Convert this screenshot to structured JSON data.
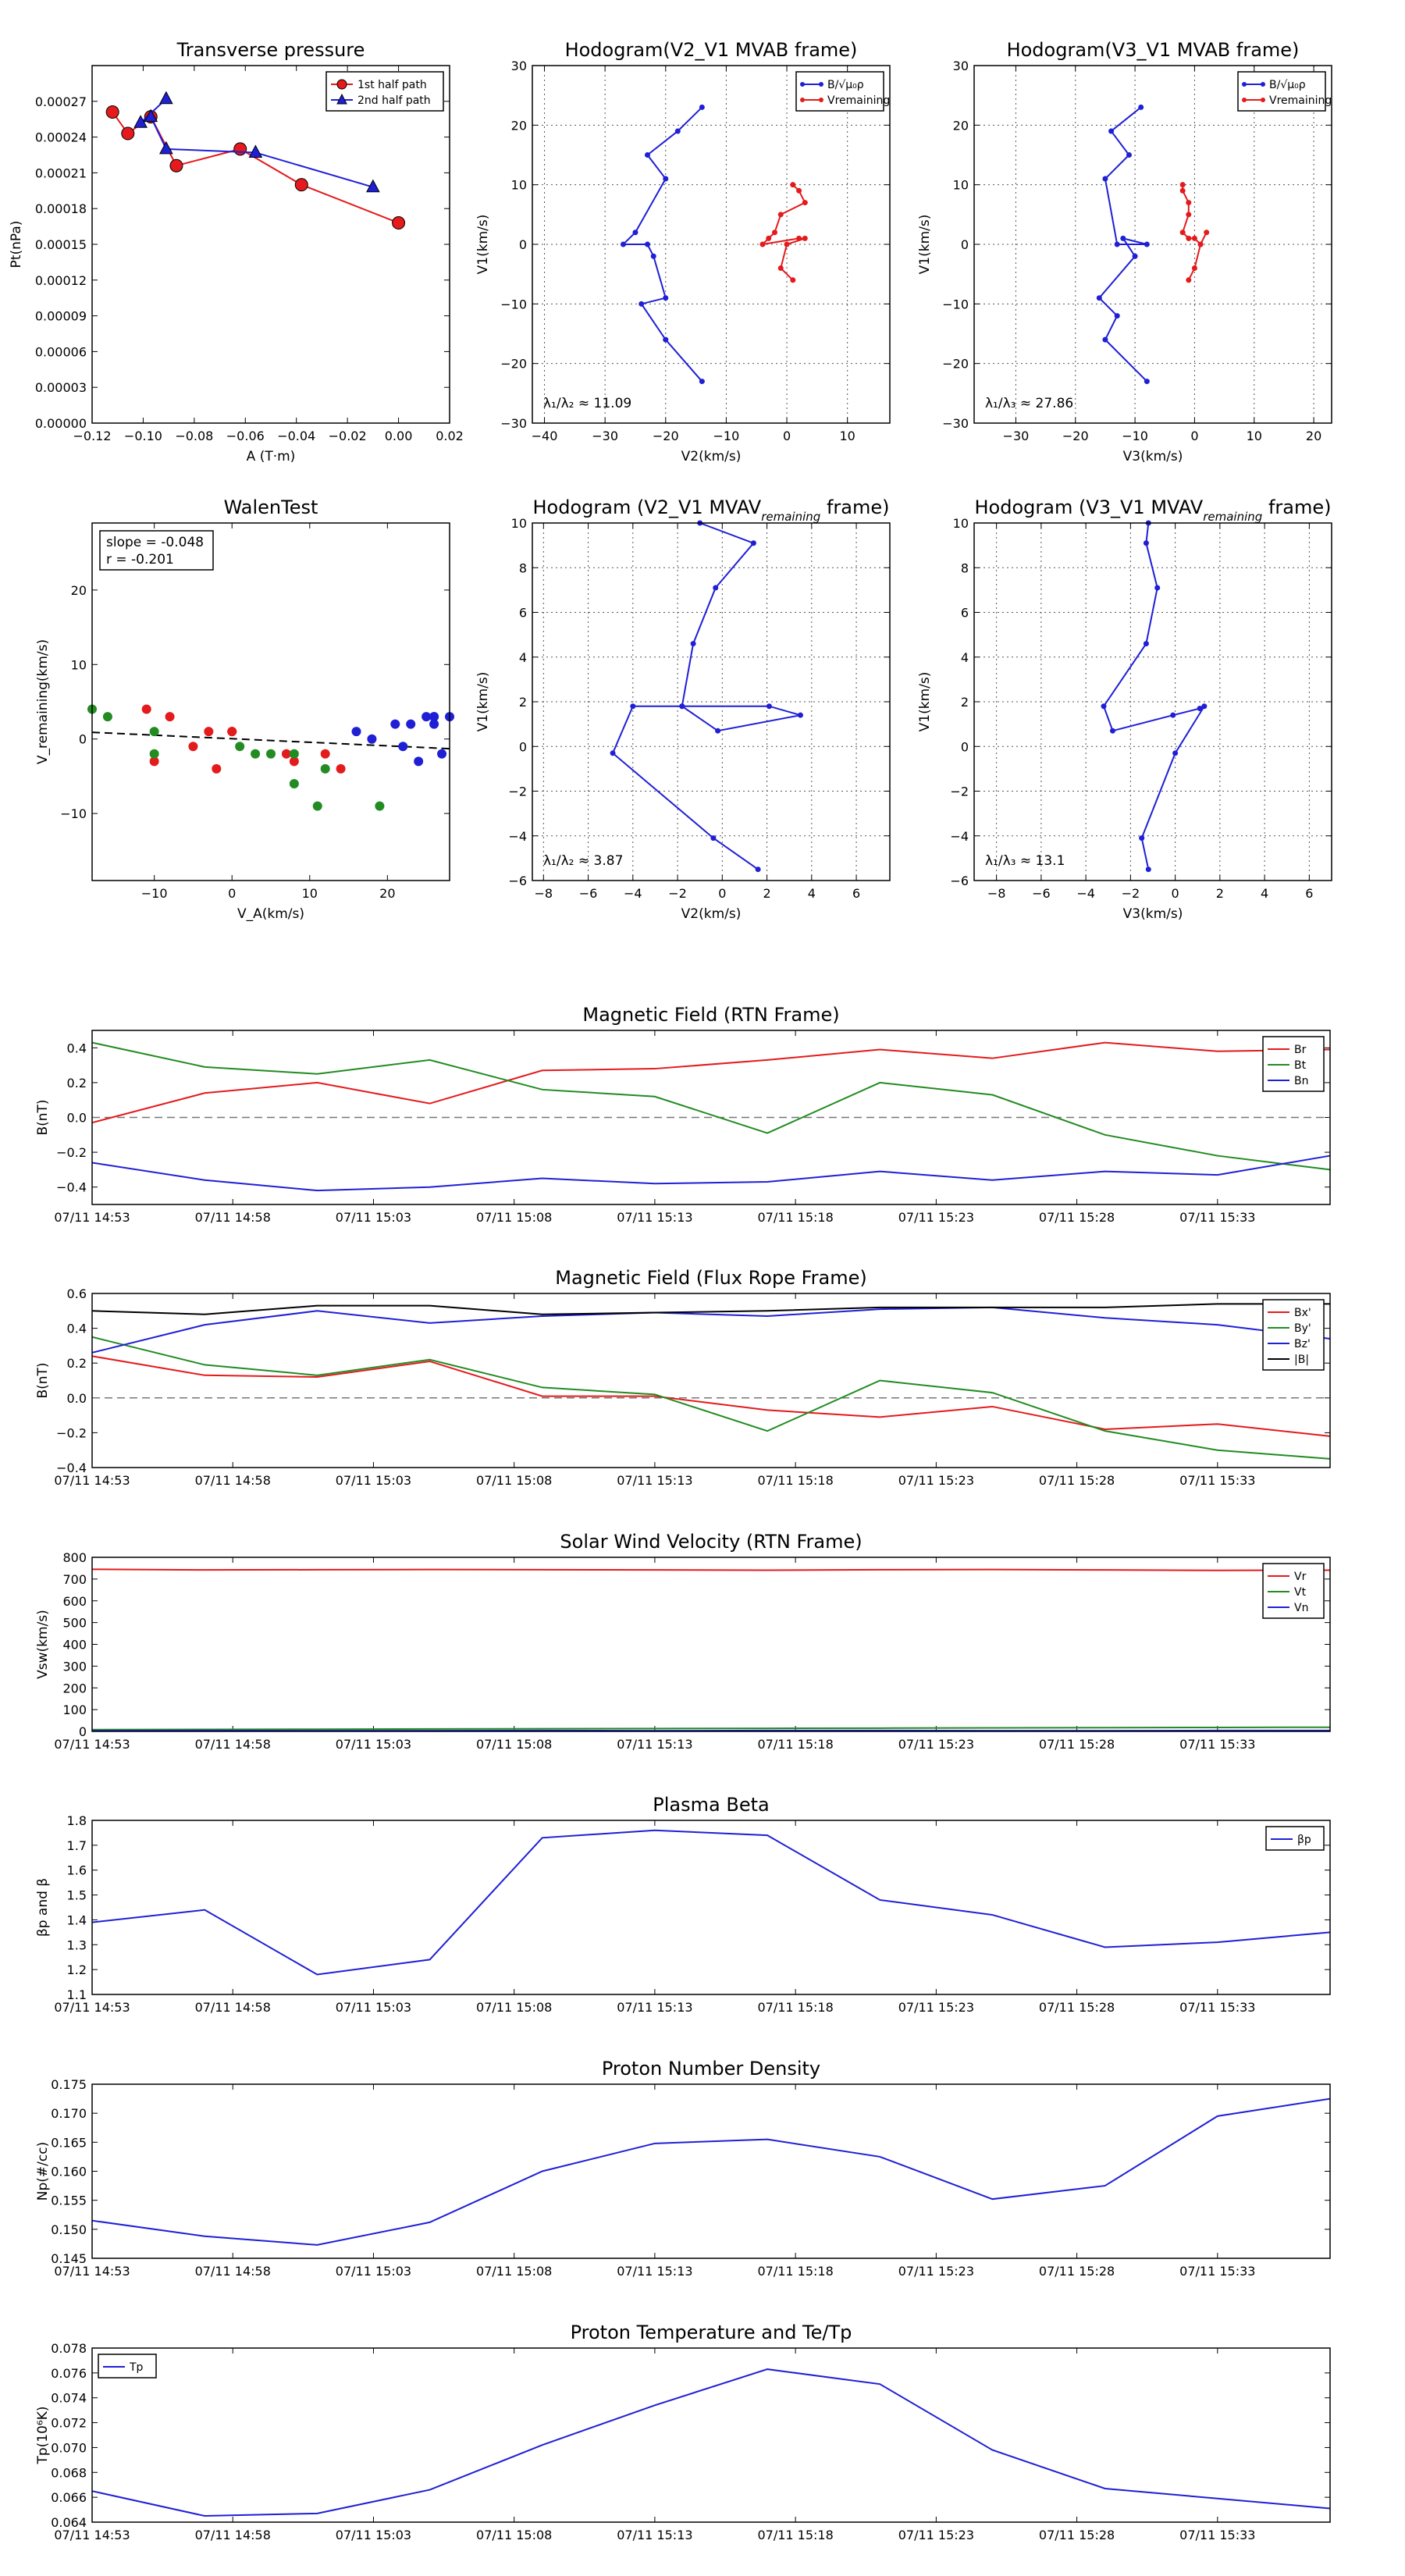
{
  "colors": {
    "red": "#e41a1c",
    "green": "#228b22",
    "blue": "#1f1fd6",
    "black": "#000000"
  },
  "chart_data": [
    {
      "id": "pt",
      "type": "line",
      "title": "Transverse pressure",
      "xlabel": "A (T·m)",
      "ylabel": "Pt(nPa)",
      "xlim": [
        -0.12,
        0.02
      ],
      "ylim": [
        0,
        0.0003
      ],
      "xticks": [
        "−0.12",
        "−0.10",
        "−0.08",
        "−0.06",
        "−0.04",
        "−0.02",
        "0.00",
        "0.02"
      ],
      "yticks": [
        "0.00000",
        "0.00003",
        "0.00006",
        "0.00009",
        "0.00012",
        "0.00015",
        "0.00018",
        "0.00021",
        "0.00024",
        "0.00027"
      ],
      "grid": false,
      "legend": "top-right",
      "series": [
        {
          "name": "1st half path",
          "color": "red",
          "marker": "circle",
          "x": [
            -0.112,
            -0.106,
            -0.097,
            -0.087,
            -0.062,
            -0.038,
            0.0
          ],
          "y": [
            0.000261,
            0.000243,
            0.000257,
            0.000216,
            0.00023,
            0.0002,
            0.000168
          ]
        },
        {
          "name": "2nd half path",
          "color": "blue",
          "marker": "triangle",
          "x": [
            -0.091,
            -0.101,
            -0.097,
            -0.091,
            -0.056,
            -0.01
          ],
          "y": [
            0.000272,
            0.000252,
            0.000257,
            0.00023,
            0.000227,
            0.000198
          ]
        }
      ]
    },
    {
      "id": "h1",
      "type": "line",
      "title": "Hodogram(V2_V1 MVAB frame)",
      "xlabel": "V2(km/s)",
      "ylabel": "V1(km/s)",
      "xlim": [
        -42,
        17
      ],
      "ylim": [
        -30,
        30
      ],
      "xticks": [
        "−40",
        "−30",
        "−20",
        "−10",
        "0",
        "10"
      ],
      "yticks": [
        "−30",
        "−20",
        "−10",
        "0",
        "10",
        "20",
        "30"
      ],
      "grid": true,
      "legend": "top-right",
      "annotation": "λ₁/λ₂ ≈ 11.09",
      "series": [
        {
          "name": "B/√μ₀ρ",
          "color": "blue",
          "marker": "dot",
          "x": [
            -14,
            -18,
            -23,
            -20,
            -25,
            -27,
            -23,
            -22,
            -20,
            -24,
            -20,
            -14
          ],
          "y": [
            23,
            19,
            15,
            11,
            2,
            0,
            0,
            -2,
            -9,
            -10,
            -16,
            -23
          ]
        },
        {
          "name": "Vremaining",
          "color": "red",
          "marker": "dot",
          "x": [
            1,
            2,
            3,
            -1,
            -2,
            -3,
            -4,
            2,
            3,
            0,
            -1,
            1
          ],
          "y": [
            10,
            9,
            7,
            5,
            2,
            1,
            0,
            1,
            1,
            0,
            -4,
            -6
          ]
        }
      ]
    },
    {
      "id": "h2",
      "type": "line",
      "title": "Hodogram(V3_V1 MVAB frame)",
      "xlabel": "V3(km/s)",
      "ylabel": "V1(km/s)",
      "xlim": [
        -37,
        23
      ],
      "ylim": [
        -30,
        30
      ],
      "xticks": [
        "−30",
        "−20",
        "−10",
        "0",
        "10",
        "20"
      ],
      "yticks": [
        "−30",
        "−20",
        "−10",
        "0",
        "10",
        "20",
        "30"
      ],
      "grid": true,
      "legend": "top-right",
      "annotation": "λ₁/λ₃ ≈ 27.86",
      "series": [
        {
          "name": "B/√μ₀ρ",
          "color": "blue",
          "marker": "dot",
          "x": [
            -9,
            -14,
            -11,
            -15,
            -13,
            -8,
            -12,
            -10,
            -16,
            -13,
            -15,
            -8
          ],
          "y": [
            23,
            19,
            15,
            11,
            0,
            0,
            1,
            -2,
            -9,
            -12,
            -16,
            -23
          ]
        },
        {
          "name": "Vremaining",
          "color": "red",
          "marker": "dot",
          "x": [
            -2,
            -2,
            -1,
            -1,
            -2,
            -1,
            0,
            1,
            2,
            1,
            0,
            -1
          ],
          "y": [
            10,
            9,
            7,
            5,
            2,
            1,
            1,
            0,
            2,
            0,
            -4,
            -6
          ]
        }
      ]
    },
    {
      "id": "walen",
      "type": "scatter",
      "title": "WalenTest",
      "xlabel": "V_A(km/s)",
      "ylabel": "V_remaining(km/s)",
      "xlim": [
        -18,
        28
      ],
      "ylim": [
        -19,
        29
      ],
      "xticks": [
        "−10",
        "0",
        "10",
        "20"
      ],
      "yticks": [
        "−10",
        "0",
        "10",
        "20"
      ],
      "grid": false,
      "textbox": [
        "slope = -0.048",
        "r = -0.201"
      ],
      "fit": {
        "x": [
          -18,
          28
        ],
        "y": [
          0.9,
          -1.3
        ]
      },
      "series": [
        {
          "color": "red",
          "x": [
            -11,
            -10,
            -8,
            -5,
            -3,
            -2,
            0,
            0,
            8,
            7,
            12,
            14
          ],
          "y": [
            4,
            -3,
            3,
            -1,
            1,
            -4,
            1,
            1,
            -3,
            -2,
            -2,
            -4
          ]
        },
        {
          "color": "green",
          "x": [
            -18,
            -16,
            -10,
            -10,
            1,
            3,
            5,
            8,
            8,
            11,
            12,
            19
          ],
          "y": [
            4,
            3,
            1,
            -2,
            -1,
            -2,
            -2,
            -2,
            -6,
            -9,
            -4,
            -9
          ]
        },
        {
          "color": "blue",
          "x": [
            16,
            18,
            21,
            22,
            23,
            24,
            25,
            26,
            26,
            26,
            27,
            28
          ],
          "y": [
            1,
            0,
            2,
            -1,
            2,
            -3,
            3,
            2,
            3,
            3,
            -2,
            3
          ]
        }
      ]
    },
    {
      "id": "h3",
      "type": "line",
      "title": "Hodogram (V2_V1 MVAV",
      "title_sub": "remaining",
      "title_end": " frame)",
      "xlabel": "V2(km/s)",
      "ylabel": "V1(km/s)",
      "xlim": [
        -8.5,
        7.5
      ],
      "ylim": [
        -6,
        10
      ],
      "xticks": [
        "−8",
        "−6",
        "−4",
        "−2",
        "0",
        "2",
        "4",
        "6"
      ],
      "yticks": [
        "−6",
        "−4",
        "−2",
        "0",
        "2",
        "4",
        "6",
        "8",
        "10"
      ],
      "grid": true,
      "annotation": "λ₁/λ₂ ≈ 3.87",
      "series": [
        {
          "color": "blue",
          "marker": "dot",
          "x": [
            -1.0,
            1.4,
            -0.3,
            -1.3,
            -1.8,
            2.1,
            3.5,
            -0.2,
            -1.8,
            -4.0,
            -4.9,
            -0.4,
            1.6
          ],
          "y": [
            10.0,
            9.1,
            7.1,
            4.6,
            1.8,
            1.8,
            1.4,
            0.7,
            1.8,
            1.8,
            -0.3,
            -4.1,
            -5.5
          ]
        }
      ]
    },
    {
      "id": "h4",
      "type": "line",
      "title": "Hodogram (V3_V1 MVAV",
      "title_sub": "remaining",
      "title_end": " frame)",
      "xlabel": "V3(km/s)",
      "ylabel": "V1(km/s)",
      "xlim": [
        -9,
        7
      ],
      "ylim": [
        -6,
        10
      ],
      "xticks": [
        "−8",
        "−6",
        "−4",
        "−2",
        "0",
        "2",
        "4",
        "6"
      ],
      "yticks": [
        "−6",
        "−4",
        "−2",
        "0",
        "2",
        "4",
        "6",
        "8",
        "10"
      ],
      "grid": true,
      "annotation": "λ₁/λ₃ ≈ 13.1",
      "series": [
        {
          "color": "blue",
          "marker": "dot",
          "x": [
            -1.2,
            -1.3,
            -0.8,
            -1.3,
            -3.2,
            -2.8,
            -0.1,
            1.1,
            1.3,
            0,
            -1.5,
            -1.2
          ],
          "y": [
            10.0,
            9.1,
            7.1,
            4.6,
            1.8,
            0.7,
            1.4,
            1.7,
            1.8,
            -0.3,
            -4.1,
            -5.5
          ]
        }
      ]
    },
    {
      "id": "bf",
      "type": "line",
      "title": "Magnetic Field (RTN Frame)",
      "ylabel": "B(nT)",
      "xlim": [
        0,
        44
      ],
      "ylim": [
        -0.5,
        0.5
      ],
      "yticks": [
        "−0.4",
        "−0.2",
        "0.0",
        "0.2",
        "0.4"
      ],
      "xtick_pos": [
        0,
        5,
        10,
        15,
        20,
        25,
        30,
        35,
        40
      ],
      "xticks": [
        "07/11 14:53",
        "07/11 14:58",
        "07/11 15:03",
        "07/11 15:08",
        "07/11 15:13",
        "07/11 15:18",
        "07/11 15:23",
        "07/11 15:28",
        "07/11 15:33"
      ],
      "zero_line": true,
      "legend": "top-right",
      "x": [
        0,
        4,
        8,
        12,
        16,
        20,
        24,
        28,
        32,
        36,
        40,
        44
      ],
      "series": [
        {
          "name": "Br",
          "color": "red",
          "y": [
            -0.03,
            0.14,
            0.2,
            0.08,
            0.27,
            0.28,
            0.33,
            0.39,
            0.34,
            0.43,
            0.38,
            0.39
          ]
        },
        {
          "name": "Bt",
          "color": "green",
          "y": [
            0.43,
            0.29,
            0.25,
            0.33,
            0.16,
            0.12,
            -0.09,
            0.2,
            0.13,
            -0.1,
            -0.22,
            -0.3
          ]
        },
        {
          "name": "Bn",
          "color": "blue",
          "y": [
            -0.26,
            -0.36,
            -0.42,
            -0.4,
            -0.35,
            -0.38,
            -0.37,
            -0.31,
            -0.36,
            -0.31,
            -0.33,
            -0.22
          ]
        }
      ]
    },
    {
      "id": "bfr",
      "type": "line",
      "title": "Magnetic Field (Flux Rope Frame)",
      "ylabel": "B(nT)",
      "xlim": [
        0,
        44
      ],
      "ylim": [
        -0.4,
        0.6
      ],
      "yticks": [
        "−0.4",
        "−0.2",
        "0.0",
        "0.2",
        "0.4",
        "0.6"
      ],
      "xtick_pos": [
        0,
        5,
        10,
        15,
        20,
        25,
        30,
        35,
        40
      ],
      "xticks": [
        "07/11 14:53",
        "07/11 14:58",
        "07/11 15:03",
        "07/11 15:08",
        "07/11 15:13",
        "07/11 15:18",
        "07/11 15:23",
        "07/11 15:28",
        "07/11 15:33"
      ],
      "zero_line": true,
      "legend": "top-right",
      "x": [
        0,
        4,
        8,
        12,
        16,
        20,
        24,
        28,
        32,
        36,
        40,
        44
      ],
      "series": [
        {
          "name": "Bx'",
          "color": "red",
          "y": [
            0.24,
            0.13,
            0.12,
            0.21,
            0.01,
            0.01,
            -0.07,
            -0.11,
            -0.05,
            -0.18,
            -0.15,
            -0.22
          ]
        },
        {
          "name": "By'",
          "color": "green",
          "y": [
            0.35,
            0.19,
            0.13,
            0.22,
            0.06,
            0.02,
            -0.19,
            0.1,
            0.03,
            -0.19,
            -0.3,
            -0.35
          ]
        },
        {
          "name": "Bz'",
          "color": "blue",
          "y": [
            0.26,
            0.42,
            0.5,
            0.43,
            0.47,
            0.49,
            0.47,
            0.51,
            0.52,
            0.46,
            0.42,
            0.34
          ]
        },
        {
          "name": "|B|",
          "color": "black",
          "y": [
            0.5,
            0.48,
            0.53,
            0.53,
            0.48,
            0.49,
            0.5,
            0.52,
            0.52,
            0.52,
            0.54,
            0.54
          ]
        }
      ]
    },
    {
      "id": "vsw",
      "type": "line",
      "title": "Solar Wind Velocity (RTN Frame)",
      "ylabel": "Vsw(km/s)",
      "xlim": [
        0,
        44
      ],
      "ylim": [
        0,
        800
      ],
      "yticks": [
        "0",
        "100",
        "200",
        "300",
        "400",
        "500",
        "600",
        "700",
        "800"
      ],
      "xtick_pos": [
        0,
        5,
        10,
        15,
        20,
        25,
        30,
        35,
        40
      ],
      "xticks": [
        "07/11 14:53",
        "07/11 14:58",
        "07/11 15:03",
        "07/11 15:08",
        "07/11 15:13",
        "07/11 15:18",
        "07/11 15:23",
        "07/11 15:28",
        "07/11 15:33"
      ],
      "legend": "top-right",
      "x": [
        0,
        4,
        8,
        12,
        16,
        20,
        24,
        28,
        32,
        36,
        40,
        44
      ],
      "series": [
        {
          "name": "Vr",
          "color": "red",
          "y": [
            745,
            742,
            743,
            744,
            743,
            742,
            741,
            743,
            744,
            742,
            740,
            741
          ]
        },
        {
          "name": "Vt",
          "color": "green",
          "y": [
            8,
            9,
            10,
            11,
            12,
            13,
            14,
            15,
            16,
            17,
            18,
            19
          ]
        },
        {
          "name": "Vn",
          "color": "blue",
          "y": [
            3,
            4,
            3,
            3,
            4,
            3,
            4,
            4,
            3,
            3,
            4,
            4
          ]
        }
      ]
    },
    {
      "id": "beta",
      "type": "line",
      "title": "Plasma Beta",
      "ylabel": "βp and β",
      "xlim": [
        0,
        44
      ],
      "ylim": [
        1.1,
        1.8
      ],
      "yticks": [
        "1.1",
        "1.2",
        "1.3",
        "1.4",
        "1.5",
        "1.6",
        "1.7",
        "1.8"
      ],
      "xtick_pos": [
        0,
        5,
        10,
        15,
        20,
        25,
        30,
        35,
        40
      ],
      "xticks": [
        "07/11 14:53",
        "07/11 14:58",
        "07/11 15:03",
        "07/11 15:08",
        "07/11 15:13",
        "07/11 15:18",
        "07/11 15:23",
        "07/11 15:28",
        "07/11 15:33"
      ],
      "legend": "top-right",
      "x": [
        0,
        4,
        8,
        12,
        16,
        20,
        24,
        28,
        32,
        36,
        40,
        44
      ],
      "series": [
        {
          "name": "βp",
          "color": "blue",
          "y": [
            1.39,
            1.44,
            1.18,
            1.24,
            1.73,
            1.76,
            1.74,
            1.48,
            1.42,
            1.29,
            1.31,
            1.35
          ]
        }
      ]
    },
    {
      "id": "np",
      "type": "line",
      "title": "Proton Number Density",
      "ylabel": "Np(#/cc)",
      "xlim": [
        0,
        44
      ],
      "ylim": [
        0.145,
        0.175
      ],
      "yticks": [
        "0.145",
        "0.150",
        "0.155",
        "0.160",
        "0.165",
        "0.170",
        "0.175"
      ],
      "xtick_pos": [
        0,
        5,
        10,
        15,
        20,
        25,
        30,
        35,
        40
      ],
      "xticks": [
        "07/11 14:53",
        "07/11 14:58",
        "07/11 15:03",
        "07/11 15:08",
        "07/11 15:13",
        "07/11 15:18",
        "07/11 15:23",
        "07/11 15:28",
        "07/11 15:33"
      ],
      "x": [
        0,
        4,
        8,
        12,
        16,
        20,
        24,
        28,
        32,
        36,
        40,
        44
      ],
      "series": [
        {
          "color": "blue",
          "y": [
            0.1515,
            0.1488,
            0.1473,
            0.1512,
            0.16,
            0.1648,
            0.1655,
            0.1625,
            0.1552,
            0.1575,
            0.1695,
            0.1725
          ]
        }
      ]
    },
    {
      "id": "tp",
      "type": "line",
      "title": "Proton Temperature and Te/Tp",
      "ylabel": "Tp(10⁶K)",
      "xlim": [
        0,
        44
      ],
      "ylim": [
        0.064,
        0.078
      ],
      "yticks": [
        "0.064",
        "0.066",
        "0.068",
        "0.070",
        "0.072",
        "0.074",
        "0.076",
        "0.078"
      ],
      "xtick_pos": [
        0,
        5,
        10,
        15,
        20,
        25,
        30,
        35,
        40
      ],
      "xticks": [
        "07/11 14:53",
        "07/11 14:58",
        "07/11 15:03",
        "07/11 15:08",
        "07/11 15:13",
        "07/11 15:18",
        "07/11 15:23",
        "07/11 15:28",
        "07/11 15:33"
      ],
      "legend": "top-left",
      "x": [
        0,
        4,
        8,
        12,
        16,
        20,
        24,
        28,
        32,
        36,
        40,
        44
      ],
      "series": [
        {
          "name": "Tp",
          "color": "blue",
          "y": [
            0.0665,
            0.0645,
            0.0647,
            0.0666,
            0.0702,
            0.0734,
            0.0763,
            0.0751,
            0.0698,
            0.0667,
            0.0659,
            0.0651
          ]
        }
      ]
    }
  ]
}
